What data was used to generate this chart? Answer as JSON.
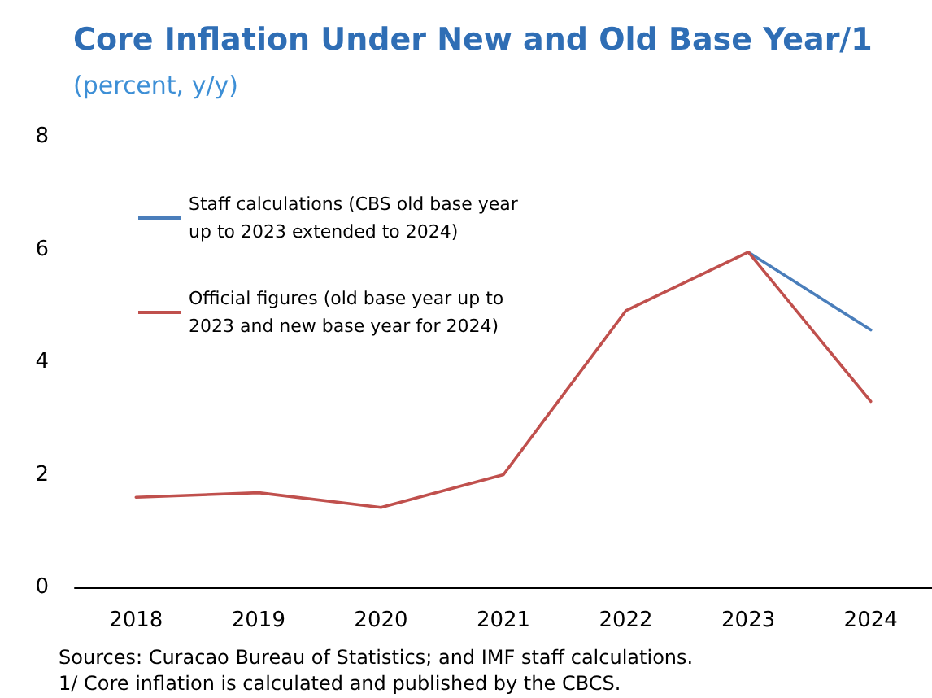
{
  "chart_data": {
    "type": "line",
    "title": "Core Inflation Under New and Old Base Year/1",
    "subtitle": "(percent, y/y)",
    "categories": [
      "2018",
      "2019",
      "2020",
      "2021",
      "2022",
      "2023",
      "2024"
    ],
    "series": [
      {
        "name": "Staff calculations (CBS old base year up to 2023 extended to 2024)",
        "color": "#4a7ebb",
        "values": [
          null,
          null,
          null,
          null,
          null,
          5.95,
          4.57
        ]
      },
      {
        "name": "Official figures (old base year up to 2023 and new base year for 2024)",
        "color": "#c0504d",
        "values": [
          1.6,
          1.68,
          1.42,
          2.0,
          4.91,
          5.95,
          3.3
        ]
      }
    ],
    "ylim": [
      0,
      8
    ],
    "yticks": [
      0,
      2,
      4,
      6,
      8
    ],
    "grid": false,
    "legend": "top left",
    "marker": "none",
    "line_style": "solid",
    "annotations": [
      "Sources: Curacao Bureau of Statistics; and IMF staff calculations.",
      "1/ Core inflation is calculated and published by the CBCS."
    ]
  }
}
